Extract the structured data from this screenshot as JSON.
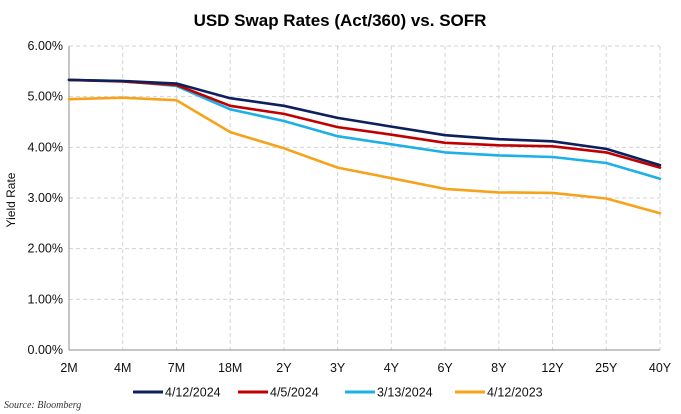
{
  "chart_data": {
    "type": "line",
    "title": "USD Swap Rates (Act/360) vs. SOFR",
    "ylabel": "Yield Rate",
    "xlabel": "",
    "categories": [
      "2M",
      "4M",
      "7M",
      "18M",
      "2Y",
      "3Y",
      "4Y",
      "6Y",
      "8Y",
      "12Y",
      "25Y",
      "40Y"
    ],
    "ylim": [
      0,
      6
    ],
    "yticks": [
      0,
      1,
      2,
      3,
      4,
      5,
      6
    ],
    "ytick_labels": [
      "0.00%",
      "1.00%",
      "2.00%",
      "3.00%",
      "4.00%",
      "5.00%",
      "6.00%"
    ],
    "grid": true,
    "legend_position": "bottom",
    "series": [
      {
        "name": "4/12/2024",
        "color": "#0d1f5c",
        "values": [
          5.33,
          5.31,
          5.26,
          4.97,
          4.82,
          4.58,
          4.41,
          4.24,
          4.16,
          4.12,
          3.97,
          3.65
        ]
      },
      {
        "name": "4/5/2024",
        "color": "#c00000",
        "values": [
          5.33,
          5.3,
          5.23,
          4.82,
          4.66,
          4.4,
          4.25,
          4.09,
          4.04,
          4.02,
          3.9,
          3.6
        ]
      },
      {
        "name": "3/13/2024",
        "color": "#1cb0e6",
        "values": [
          5.33,
          5.31,
          5.21,
          4.75,
          4.52,
          4.22,
          4.06,
          3.9,
          3.84,
          3.81,
          3.69,
          3.38
        ]
      },
      {
        "name": "4/12/2023",
        "color": "#f7a21b",
        "values": [
          4.95,
          4.98,
          4.93,
          4.3,
          3.98,
          3.6,
          3.39,
          3.18,
          3.11,
          3.1,
          2.99,
          2.7
        ]
      }
    ],
    "source": "Source: Bloomberg"
  }
}
